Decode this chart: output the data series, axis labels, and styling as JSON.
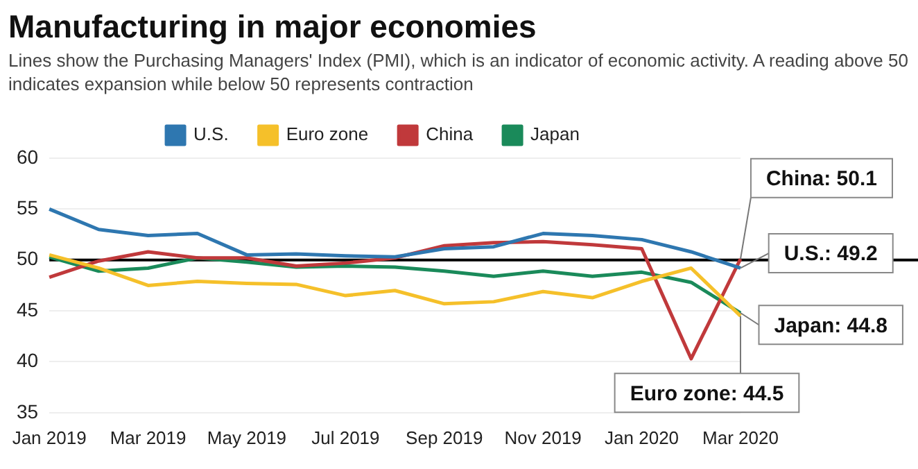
{
  "chart_data": {
    "type": "line",
    "title": "Manufacturing in major economies",
    "subtitle": "Lines show the Purchasing Managers' Index (PMI), which is an indicator of economic activity. A reading above 50 indicates expansion while below 50 represents contraction",
    "categories": [
      "Jan 2019",
      null,
      "Mar 2019",
      null,
      "May 2019",
      null,
      "Jul 2019",
      null,
      "Sep 2019",
      null,
      "Nov 2019",
      null,
      "Jan 2020",
      null,
      "Mar 2020"
    ],
    "series": [
      {
        "name": "U.S.",
        "color": "#2e77b0",
        "values": [
          55,
          53,
          52.4,
          52.6,
          50.5,
          50.6,
          50.4,
          50.3,
          51.1,
          51.3,
          52.6,
          52.4,
          52,
          50.8,
          49.2
        ]
      },
      {
        "name": "Euro zone",
        "color": "#f5c02a",
        "values": [
          50.5,
          49.2,
          47.5,
          47.9,
          47.7,
          47.6,
          46.5,
          47,
          45.7,
          45.9,
          46.9,
          46.3,
          47.9,
          49.2,
          44.5
        ]
      },
      {
        "name": "China",
        "color": "#c0393b",
        "values": [
          48.3,
          49.9,
          50.8,
          50.2,
          50.2,
          49.4,
          49.7,
          50.2,
          51.4,
          51.7,
          51.8,
          51.5,
          51.1,
          40.3,
          50.1
        ]
      },
      {
        "name": "Japan",
        "color": "#1a8a5a",
        "values": [
          50.3,
          48.9,
          49.2,
          50.2,
          49.8,
          49.3,
          49.4,
          49.3,
          48.9,
          48.4,
          48.9,
          48.4,
          48.8,
          47.8,
          44.8
        ]
      }
    ],
    "ylim": [
      35,
      60
    ],
    "yticks": [
      35,
      40,
      45,
      50,
      55,
      60
    ],
    "grid": "y",
    "legend": "top",
    "marker": "none",
    "line_style": "solid",
    "ref_lines": [
      {
        "axis": "y",
        "value": 50,
        "color": "#000000"
      }
    ],
    "annotations": [
      {
        "text": "China: 50.1",
        "x": "Mar 2020",
        "y": 50.1
      },
      {
        "text": "U.S.: 49.2",
        "x": "Mar 2020",
        "y": 49.2
      },
      {
        "text": "Japan: 44.8",
        "x": "Mar 2020",
        "y": 44.8
      },
      {
        "text": "Euro zone: 44.5",
        "x": "Mar 2020",
        "y": 44.5
      }
    ]
  }
}
